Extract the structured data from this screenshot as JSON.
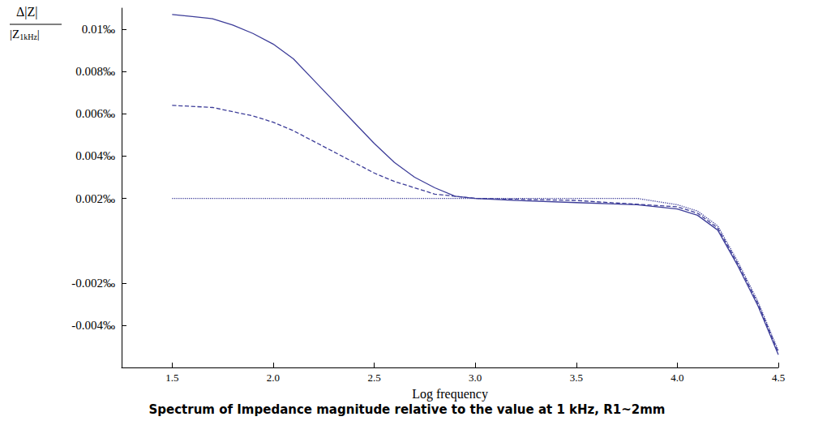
{
  "chart_data": {
    "type": "line",
    "title": "Spectrum of Impedance magnitude relative to the value at 1 kHz, R1~2mm",
    "xlabel": "Log frequency",
    "ylabel": {
      "numerator": "Δ|Z|",
      "denominator": "|Z1kHz|",
      "subscript": "1kHz"
    },
    "xlim": [
      1.25,
      4.5
    ],
    "xticks": [
      1.5,
      {
        "value": 2,
        "label": "2.0"
      },
      2.5,
      {
        "value": 3,
        "label": "3.0"
      },
      3.5,
      {
        "value": 4,
        "label": "4.0"
      },
      4.5
    ],
    "ylim": [
      -0.006,
      0.011
    ],
    "yticks": [
      {
        "value": 0.01,
        "label": "0.01‰"
      },
      {
        "value": 0.008,
        "label": "0.008‰"
      },
      {
        "value": 0.006,
        "label": "0.006‰"
      },
      {
        "value": 0.004,
        "label": "0.004‰"
      },
      {
        "value": 0.002,
        "label": "0.002‰"
      },
      {
        "value": -0.002,
        "label": "-0.002‰"
      },
      {
        "value": -0.004,
        "label": "-0.004‰"
      }
    ],
    "grid": false,
    "series": [
      {
        "color": "#3d3d99",
        "line_style": "solid",
        "x": [
          1.5,
          1.6,
          1.7,
          1.8,
          1.9,
          2.0,
          2.1,
          2.2,
          2.3,
          2.4,
          2.5,
          2.6,
          2.7,
          2.8,
          2.9,
          3.0,
          3.2,
          3.5,
          3.8,
          4.0,
          4.1,
          4.2,
          4.3,
          4.4,
          4.5
        ],
        "values": [
          0.0107,
          0.0106,
          0.0105,
          0.0102,
          0.0098,
          0.0093,
          0.0086,
          0.0076,
          0.0066,
          0.0056,
          0.0046,
          0.0037,
          0.003,
          0.0025,
          0.0021,
          0.002,
          0.0019,
          0.0018,
          0.0017,
          0.0015,
          0.0012,
          0.0005,
          -0.0012,
          -0.0031,
          -0.0054
        ]
      },
      {
        "color": "#3d3d99",
        "line_style": "dashed",
        "x": [
          1.5,
          1.7,
          1.9,
          2.0,
          2.1,
          2.2,
          2.3,
          2.4,
          2.5,
          2.6,
          2.7,
          2.8,
          2.9,
          3.0,
          3.5,
          4.0,
          4.1,
          4.2,
          4.3,
          4.4,
          4.5
        ],
        "values": [
          0.0064,
          0.0063,
          0.0059,
          0.0056,
          0.0052,
          0.0047,
          0.0042,
          0.0037,
          0.0032,
          0.0028,
          0.0025,
          0.0022,
          0.0021,
          0.002,
          0.0019,
          0.0016,
          0.0013,
          0.0006,
          -0.0011,
          -0.003,
          -0.0053
        ]
      },
      {
        "color": "#3d3d99",
        "line_style": "dotted",
        "x": [
          1.5,
          2.0,
          2.5,
          3.0,
          3.5,
          3.8,
          4.0,
          4.1,
          4.2,
          4.3,
          4.4,
          4.5
        ],
        "values": [
          0.002,
          0.002,
          0.002,
          0.002,
          0.002,
          0.002,
          0.0017,
          0.0014,
          0.0007,
          -0.001,
          -0.0029,
          -0.0052
        ]
      }
    ]
  }
}
